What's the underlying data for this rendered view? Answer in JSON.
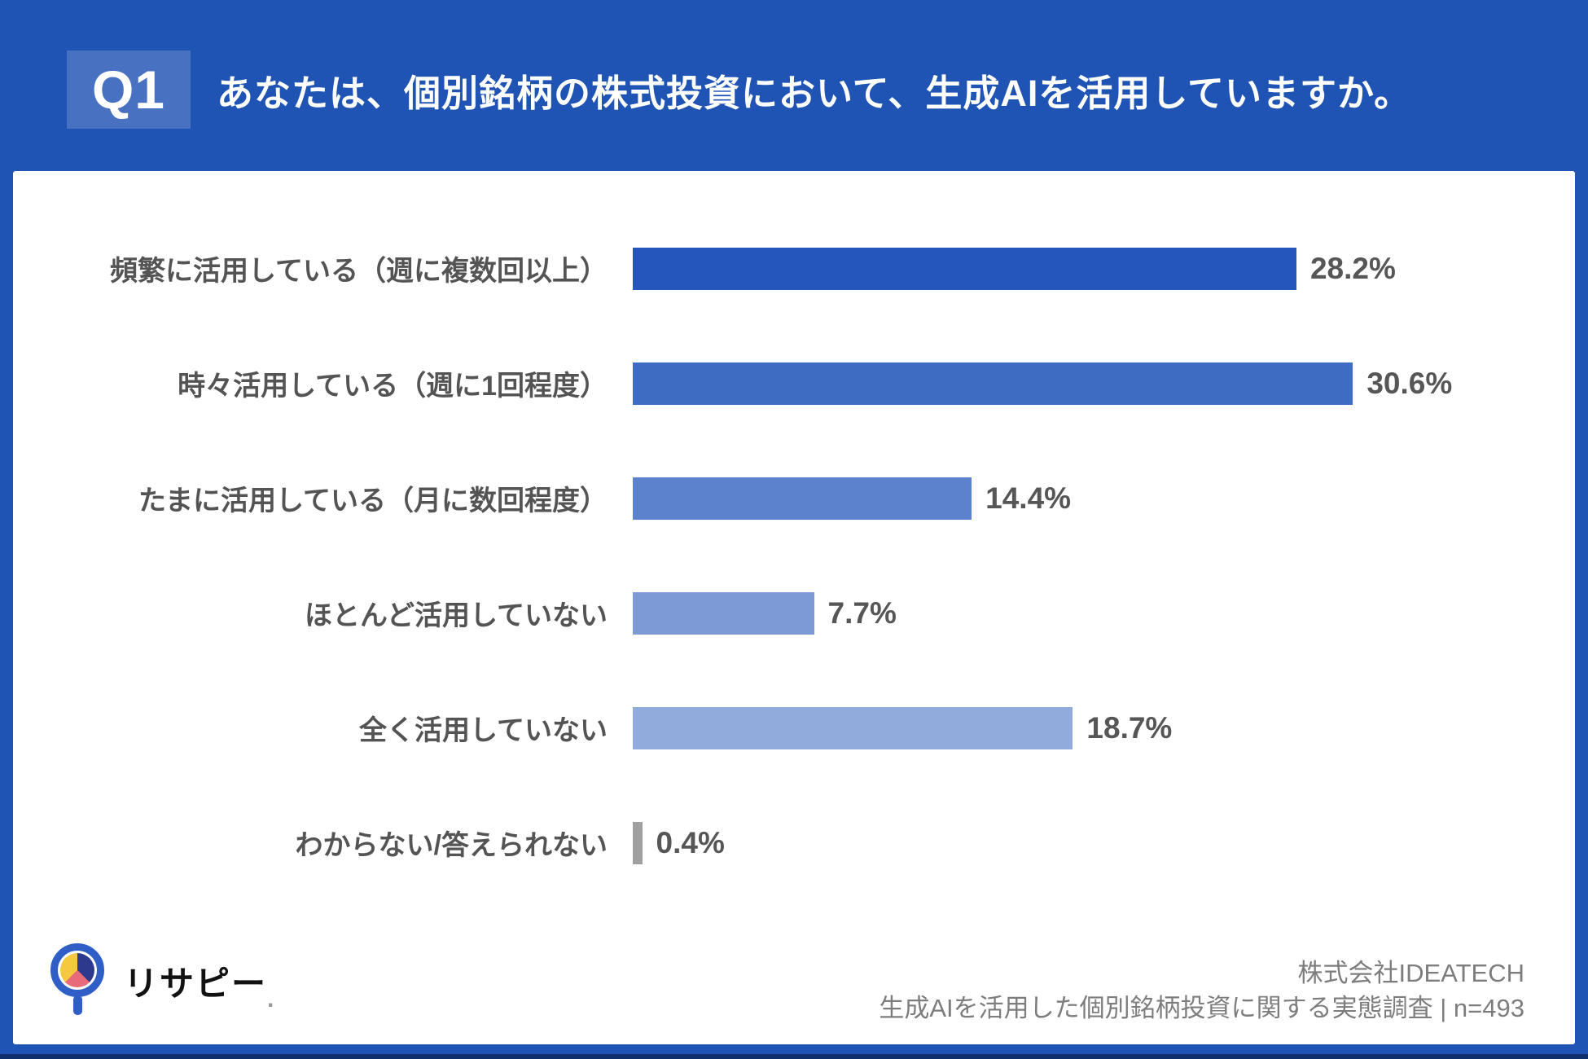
{
  "header": {
    "q_label": "Q1",
    "title": "あなたは、個別銘柄の株式投資において、生成AIを活用していますか。"
  },
  "chart_data": {
    "type": "bar",
    "orientation": "horizontal",
    "title": "あなたは、個別銘柄の株式投資において、生成AIを活用していますか。",
    "categories": [
      "頻繁に活用している（週に複数回以上）",
      "時々活用している（週に1回程度）",
      "たまに活用している（月に数回程度）",
      "ほとんど活用していない",
      "全く活用していない",
      "わからない/答えられない"
    ],
    "values": [
      28.2,
      30.6,
      14.4,
      7.7,
      18.7,
      0.4
    ],
    "value_labels": [
      "28.2%",
      "30.6%",
      "14.4%",
      "7.7%",
      "18.7%",
      "0.4%"
    ],
    "bar_colors": [
      "#2457b9",
      "#3e6cc2",
      "#5c82cd",
      "#7d99d6",
      "#91abdd",
      "#a0a0a0"
    ],
    "unit": "%",
    "xlim": [
      0,
      31
    ],
    "grid": false,
    "legend": false,
    "sample_size": "n=493"
  },
  "footer": {
    "logo_text": "リサピー",
    "logo_dot": ".",
    "company": "株式会社IDEATECH",
    "survey": "生成AIを活用した個別銘柄投資に関する実態調査 | n=493"
  },
  "colors": {
    "background": "#2054b4",
    "panel": "#ffffff",
    "badge": "#4b73c6",
    "label_text": "#545454",
    "source_text": "#7d7d7d"
  }
}
